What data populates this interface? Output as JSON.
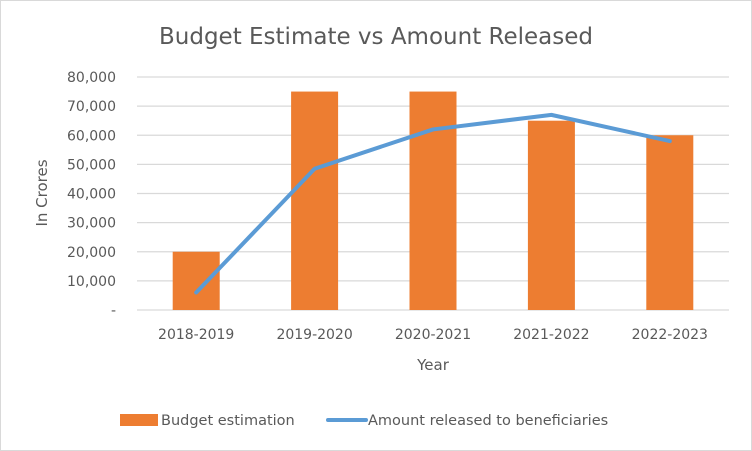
{
  "chart_data": {
    "type": "bar",
    "title": "Budget Estimate vs Amount Released",
    "xlabel": "Year",
    "ylabel": "In Crores",
    "categories": [
      "2018-2019",
      "2019-2020",
      "2020-2021",
      "2021-2022",
      "2022-2023"
    ],
    "ylim": [
      0,
      80000
    ],
    "yticks": [
      0,
      10000,
      20000,
      30000,
      40000,
      50000,
      60000,
      70000,
      80000
    ],
    "ytick_labels": [
      "-",
      "10,000",
      "20,000",
      "30,000",
      "40,000",
      "50,000",
      "60,000",
      "70,000",
      "80,000"
    ],
    "grid": true,
    "legend_position": "bottom",
    "series": [
      {
        "name": "Budget estimation",
        "type": "bar",
        "color": "#ED7D31",
        "values": [
          20000,
          75000,
          75000,
          65000,
          60000
        ]
      },
      {
        "name": "Amount released to beneficiaries",
        "type": "line",
        "color": "#5B9BD5",
        "values": [
          6000,
          48500,
          62000,
          67000,
          58000
        ]
      }
    ]
  }
}
